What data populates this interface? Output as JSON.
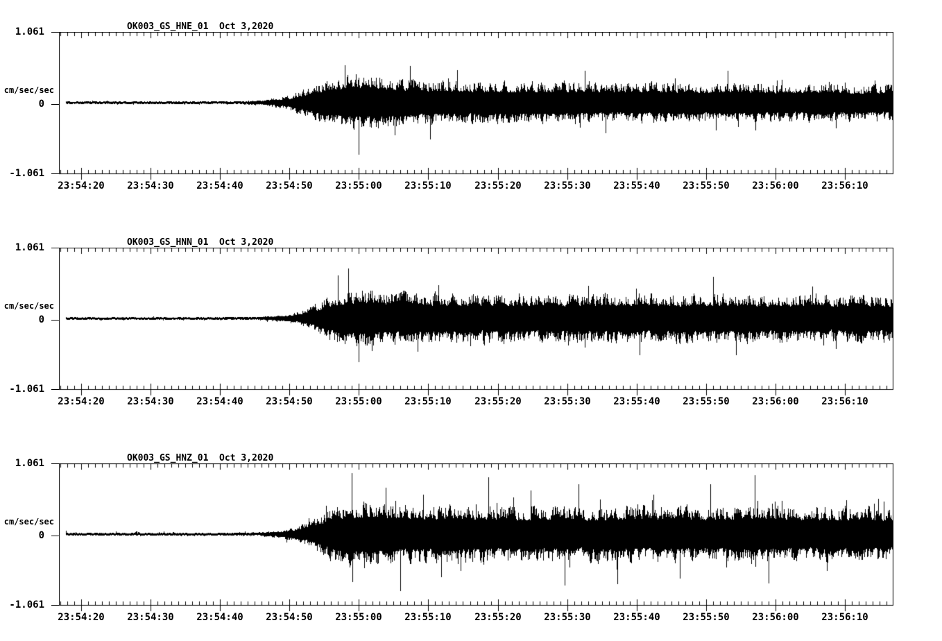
{
  "colors": {
    "background": "#ffffff",
    "ink": "#000000"
  },
  "panels": [
    {
      "id": "HNE",
      "title": "OK003_GS_HNE_01  Oct 3,2020"
    },
    {
      "id": "HNN",
      "title": "OK003_GS_HNN_01  Oct 3,2020"
    },
    {
      "id": "HNZ",
      "title": "OK003_GS_HNZ_01  Oct 3,2020"
    }
  ],
  "y_axis": {
    "unit": "cm/sec/sec",
    "max_label": "1.061",
    "zero_label": "0",
    "min_label": "-1.061",
    "max_value": 1.061
  },
  "x_axis": {
    "tick_labels": [
      "23:54:20",
      "23:54:30",
      "23:54:40",
      "23:54:50",
      "23:55:00",
      "23:55:10",
      "23:55:20",
      "23:55:30",
      "23:55:40",
      "23:55:50",
      "23:56:00",
      "23:56:10"
    ],
    "window_start": "23:54:17",
    "window_end": "23:56:17",
    "minor_tick_interval_s": 1,
    "major_tick_interval_s": 10
  },
  "chart_data": [
    {
      "type": "line",
      "title": "OK003_GS_HNE_01  Oct 3,2020",
      "station_channel": "OK003_GS_HNE_01",
      "date": "Oct 3,2020",
      "ylabel": "cm/sec/sec",
      "ylim": [
        -1.061,
        1.061
      ],
      "y_ticks": [
        -1.061,
        0,
        1.061
      ],
      "x_tick_labels": [
        "23:54:20",
        "23:54:30",
        "23:54:40",
        "23:54:50",
        "23:55:00",
        "23:55:10",
        "23:55:20",
        "23:55:30",
        "23:55:40",
        "23:55:50",
        "23:56:00",
        "23:56:10"
      ],
      "x_window": [
        "23:54:17",
        "23:56:17"
      ],
      "amplitude_envelope_cm_s2": {
        "t_s_after_23_54_00": [
          17,
          40,
          44,
          46,
          48,
          50,
          52,
          54,
          56,
          58,
          61,
          64,
          68,
          73,
          79,
          85,
          91,
          97,
          103,
          109,
          115,
          121,
          127,
          132,
          137
        ],
        "amp": [
          0.026,
          0.027,
          0.032,
          0.05,
          0.08,
          0.13,
          0.21,
          0.31,
          0.4,
          0.46,
          0.48,
          0.44,
          0.4,
          0.37,
          0.36,
          0.35,
          0.36,
          0.33,
          0.35,
          0.32,
          0.34,
          0.32,
          0.33,
          0.31,
          0.32
        ]
      },
      "notable_peaks": [
        {
          "t": 60,
          "amp": -0.78
        },
        {
          "t": 58,
          "amp": 0.56
        }
      ]
    },
    {
      "type": "line",
      "title": "OK003_GS_HNN_01  Oct 3,2020",
      "station_channel": "OK003_GS_HNN_01",
      "date": "Oct 3,2020",
      "ylabel": "cm/sec/sec",
      "ylim": [
        -1.061,
        1.061
      ],
      "y_ticks": [
        -1.061,
        0,
        1.061
      ],
      "x_tick_labels": [
        "23:54:20",
        "23:54:30",
        "23:54:40",
        "23:54:50",
        "23:55:00",
        "23:55:10",
        "23:55:20",
        "23:55:30",
        "23:55:40",
        "23:55:50",
        "23:56:00",
        "23:56:10"
      ],
      "x_window": [
        "23:54:17",
        "23:56:17"
      ],
      "amplitude_envelope_cm_s2": {
        "t_s_after_23_54_00": [
          17,
          42,
          46,
          49,
          51,
          53,
          55,
          57,
          59,
          62,
          66,
          71,
          77,
          83,
          89,
          95,
          101,
          107,
          113,
          119,
          125,
          131,
          137
        ],
        "amp": [
          0.024,
          0.026,
          0.034,
          0.06,
          0.11,
          0.2,
          0.33,
          0.45,
          0.5,
          0.48,
          0.45,
          0.43,
          0.42,
          0.43,
          0.41,
          0.42,
          0.43,
          0.41,
          0.42,
          0.4,
          0.41,
          0.4,
          0.39
        ]
      },
      "notable_peaks": [
        {
          "t": 57,
          "amp": 0.64
        },
        {
          "t": 60,
          "amp": -0.66
        },
        {
          "t": 111,
          "amp": 0.62
        }
      ]
    },
    {
      "type": "line",
      "title": "OK003_GS_HNZ_01  Oct 3,2020",
      "station_channel": "OK003_GS_HNZ_01",
      "date": "Oct 3,2020",
      "ylabel": "cm/sec/sec",
      "ylim": [
        -1.061,
        1.061
      ],
      "y_ticks": [
        -1.061,
        0,
        1.061
      ],
      "x_tick_labels": [
        "23:54:20",
        "23:54:30",
        "23:54:40",
        "23:54:50",
        "23:55:00",
        "23:55:10",
        "23:55:20",
        "23:55:30",
        "23:55:40",
        "23:55:50",
        "23:56:00",
        "23:56:10"
      ],
      "x_window": [
        "23:54:17",
        "23:56:17"
      ],
      "amplitude_envelope_cm_s2": {
        "t_s_after_23_54_00": [
          17,
          42,
          46,
          48,
          50,
          52,
          54,
          56,
          58,
          61,
          65,
          70,
          76,
          82,
          88,
          94,
          100,
          106,
          112,
          118,
          124,
          130,
          137
        ],
        "amp": [
          0.025,
          0.027,
          0.035,
          0.06,
          0.1,
          0.18,
          0.3,
          0.44,
          0.53,
          0.55,
          0.51,
          0.49,
          0.5,
          0.48,
          0.49,
          0.47,
          0.5,
          0.48,
          0.47,
          0.51,
          0.46,
          0.48,
          0.45
        ]
      },
      "notable_peaks": [
        {
          "t": 59,
          "amp": 0.92
        },
        {
          "t": 66,
          "amp": -0.85
        },
        {
          "t": 117,
          "amp": 0.88
        },
        {
          "t": 119,
          "amp": -0.74
        }
      ]
    }
  ]
}
